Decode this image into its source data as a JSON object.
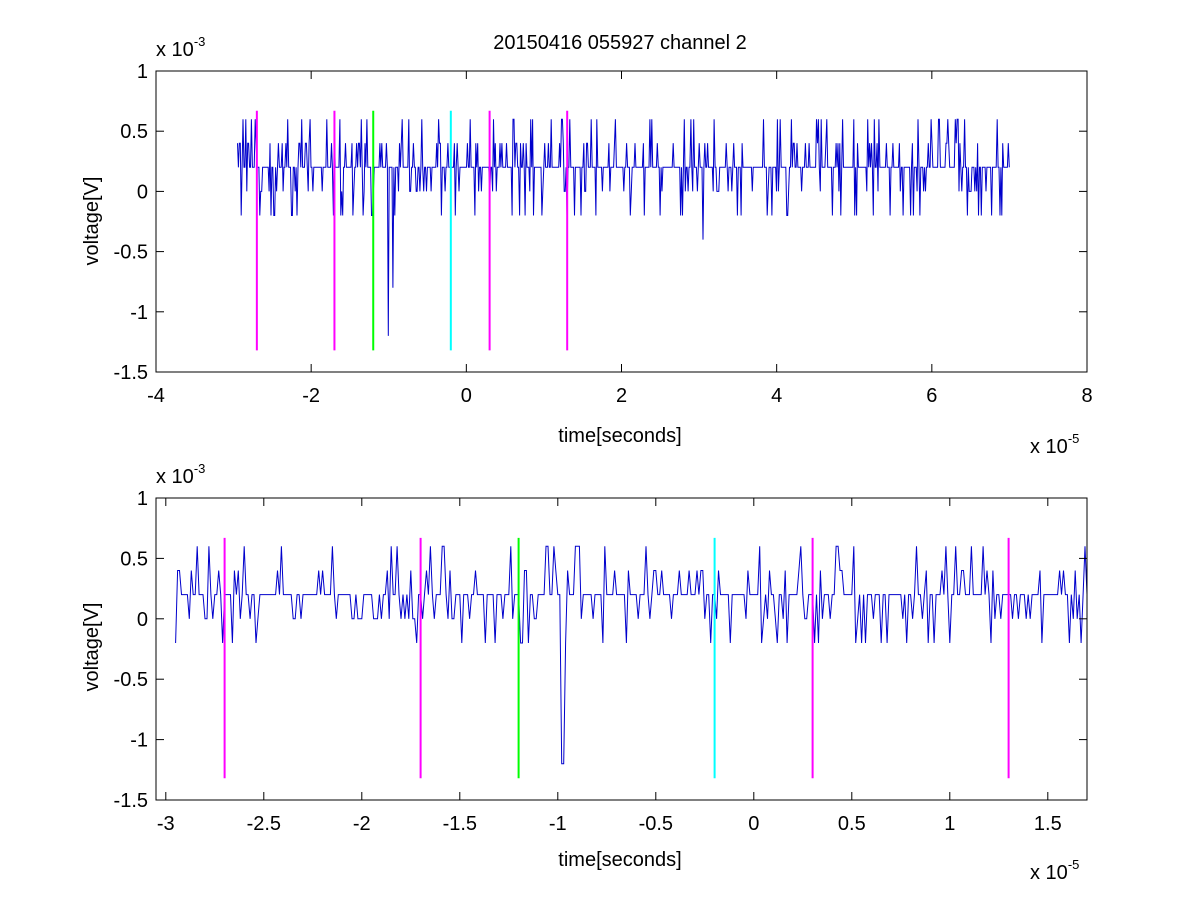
{
  "figure": {
    "title": "20150416 055927 channel 2",
    "background": "#ffffff"
  },
  "colors": {
    "signal": "#0000cc",
    "marker_magenta": "#ff00ff",
    "marker_green": "#00ff00",
    "marker_cyan": "#00ffff"
  },
  "chart_data": [
    {
      "type": "line",
      "title": "20150416 055927 channel 2",
      "xlabel": "time[seconds]",
      "ylabel": "voltage[V]",
      "x_exponent_label": "x 10",
      "x_exponent": "-5",
      "y_exponent_label": "x 10",
      "y_exponent": "-3",
      "xlim": [
        -4,
        8
      ],
      "ylim": [
        -1.5,
        1
      ],
      "x_ticks": [
        -4,
        -2,
        0,
        2,
        4,
        6,
        8
      ],
      "x_tick_labels": [
        "-4",
        "-2",
        "0",
        "2",
        "4",
        "6",
        "8"
      ],
      "y_ticks": [
        -1.5,
        -1,
        -0.5,
        0,
        0.5,
        1
      ],
      "y_tick_labels": [
        "-1.5",
        "-1",
        "-0.5",
        "0",
        "0.5",
        "1"
      ],
      "grid": false,
      "signal": {
        "x_start": -2.95,
        "x_end": 7.0,
        "baseline": 0.2,
        "quantum": 0.2,
        "spikes": [
          {
            "x": -1.0,
            "y": -1.2
          },
          {
            "x": -0.95,
            "y": -0.8
          },
          {
            "x": 3.05,
            "y": -0.4
          }
        ]
      },
      "markers": [
        {
          "x": -2.7,
          "color": "#ff00ff",
          "top": 0.67,
          "bottom": -1.32
        },
        {
          "x": -1.7,
          "color": "#ff00ff",
          "top": 0.67,
          "bottom": -1.32
        },
        {
          "x": -1.2,
          "color": "#00ff00",
          "top": 0.67,
          "bottom": -1.32
        },
        {
          "x": -0.2,
          "color": "#00ffff",
          "top": 0.67,
          "bottom": -1.32
        },
        {
          "x": 0.3,
          "color": "#ff00ff",
          "top": 0.67,
          "bottom": -1.32
        },
        {
          "x": 1.3,
          "color": "#ff00ff",
          "top": 0.67,
          "bottom": -1.32
        }
      ]
    },
    {
      "type": "line",
      "title": "",
      "xlabel": "time[seconds]",
      "ylabel": "voltage[V]",
      "x_exponent_label": "x 10",
      "x_exponent": "-5",
      "y_exponent_label": "x 10",
      "y_exponent": "-3",
      "xlim": [
        -3.05,
        1.7
      ],
      "ylim": [
        -1.5,
        1
      ],
      "x_ticks": [
        -3,
        -2.5,
        -2,
        -1.5,
        -1,
        -0.5,
        0,
        0.5,
        1,
        1.5
      ],
      "x_tick_labels": [
        "-3",
        "-2.5",
        "-2",
        "-1.5",
        "-1",
        "-0.5",
        "0",
        "0.5",
        "1",
        "1.5"
      ],
      "y_ticks": [
        -1.5,
        -1,
        -0.5,
        0,
        0.5,
        1
      ],
      "y_tick_labels": [
        "-1.5",
        "-1",
        "-0.5",
        "0",
        "0.5",
        "1"
      ],
      "grid": false,
      "signal": {
        "x_start": -2.95,
        "x_end": 1.7,
        "baseline": 0.2,
        "quantum": 0.2,
        "spikes": [
          {
            "x": -2.78,
            "y": 0.6
          },
          {
            "x": -0.98,
            "y": -1.2
          },
          {
            "x": -0.97,
            "y": -1.2
          },
          {
            "x": 0.03,
            "y": 0.6
          },
          {
            "x": 1.17,
            "y": 0.6
          }
        ]
      },
      "markers": [
        {
          "x": -2.7,
          "color": "#ff00ff",
          "top": 0.67,
          "bottom": -1.32
        },
        {
          "x": -1.7,
          "color": "#ff00ff",
          "top": 0.67,
          "bottom": -1.32
        },
        {
          "x": -1.2,
          "color": "#00ff00",
          "top": 0.67,
          "bottom": -1.32
        },
        {
          "x": -0.2,
          "color": "#00ffff",
          "top": 0.67,
          "bottom": -1.32
        },
        {
          "x": 0.3,
          "color": "#ff00ff",
          "top": 0.67,
          "bottom": -1.32
        },
        {
          "x": 1.3,
          "color": "#ff00ff",
          "top": 0.67,
          "bottom": -1.32
        }
      ]
    }
  ]
}
